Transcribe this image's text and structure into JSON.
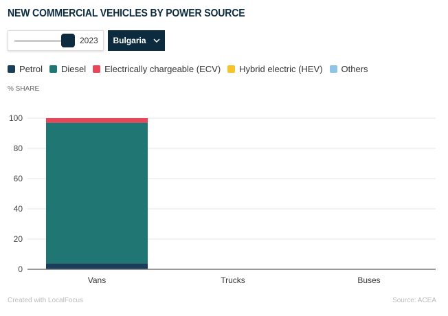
{
  "title": "NEW COMMERCIAL VEHICLES BY POWER SOURCE",
  "controls": {
    "year": "2023",
    "country": "Bulgaria",
    "slider_value": 2023
  },
  "footer": {
    "left": "Created with LocalFocus",
    "right": "Source: ACEA"
  },
  "chart_data": {
    "type": "bar",
    "stacked": true,
    "ylabel": "% SHARE",
    "ylim": [
      0,
      100
    ],
    "yticks": [
      0,
      20,
      40,
      60,
      80,
      100
    ],
    "grid": true,
    "legend": "top",
    "categories": [
      "Vans",
      "Trucks",
      "Buses"
    ],
    "series": [
      {
        "name": "Petrol",
        "color": "#1b3d5c",
        "values": [
          4,
          0,
          0
        ]
      },
      {
        "name": "Diesel",
        "color": "#1f7673",
        "values": [
          93,
          0,
          0
        ]
      },
      {
        "name": "Electrically chargeable (ECV)",
        "color": "#e8475a",
        "values": [
          3,
          0,
          0
        ]
      },
      {
        "name": "Hybrid electric (HEV)",
        "color": "#f7c52a",
        "values": [
          0,
          0,
          0
        ]
      },
      {
        "name": "Others",
        "color": "#8ec5e6",
        "values": [
          0,
          0,
          0
        ]
      }
    ]
  }
}
